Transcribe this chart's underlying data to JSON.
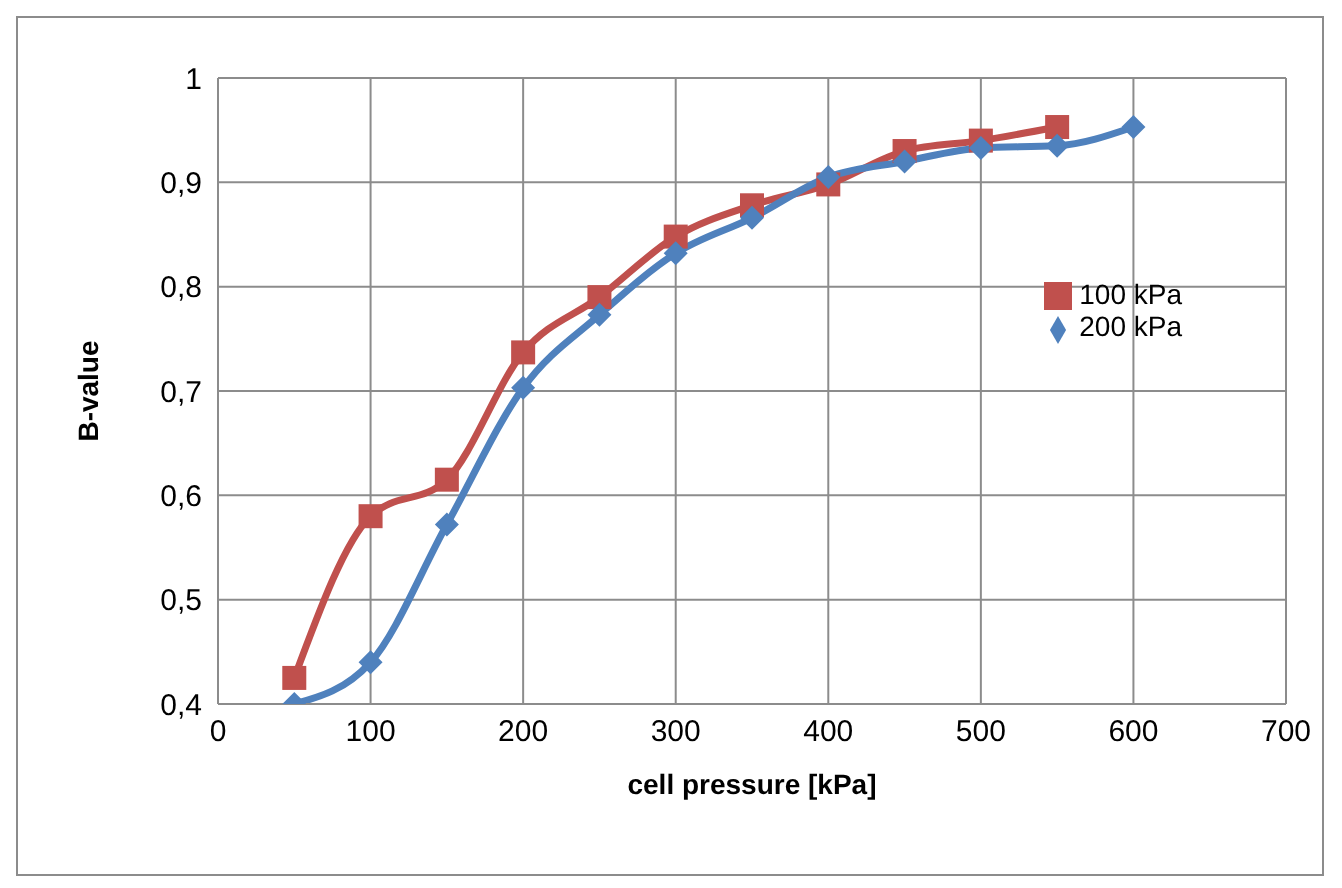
{
  "chart_data": {
    "type": "line",
    "xlabel": "cell pressure [kPa]",
    "ylabel": "B-value",
    "xlim": [
      0,
      700
    ],
    "xticks": [
      0,
      100,
      200,
      300,
      400,
      500,
      600,
      700
    ],
    "ylim": [
      0.4,
      1
    ],
    "yticks": [
      {
        "value": 0.4,
        "label": "0,4"
      },
      {
        "value": 0.5,
        "label": "0,5"
      },
      {
        "value": 0.6,
        "label": "0,6"
      },
      {
        "value": 0.7,
        "label": "0,7"
      },
      {
        "value": 0.8,
        "label": "0,8"
      },
      {
        "value": 0.9,
        "label": "0,9"
      },
      {
        "value": 1,
        "label": "1"
      }
    ],
    "grid": true,
    "legend": "right",
    "series": [
      {
        "name": "100 kPa",
        "color": "#c0504d",
        "marker": "square",
        "x": [
          50,
          100,
          150,
          200,
          250,
          300,
          350,
          400,
          450,
          500,
          550
        ],
        "values": [
          0.425,
          0.58,
          0.615,
          0.737,
          0.79,
          0.848,
          0.878,
          0.898,
          0.93,
          0.94,
          0.953
        ]
      },
      {
        "name": "200 kPa",
        "color": "#4f81bd",
        "marker": "diamond",
        "x": [
          50,
          100,
          150,
          200,
          250,
          300,
          350,
          400,
          450,
          500,
          550,
          600
        ],
        "values": [
          0.4,
          0.44,
          0.572,
          0.703,
          0.773,
          0.832,
          0.866,
          0.905,
          0.92,
          0.933,
          0.935,
          0.953
        ]
      }
    ]
  }
}
